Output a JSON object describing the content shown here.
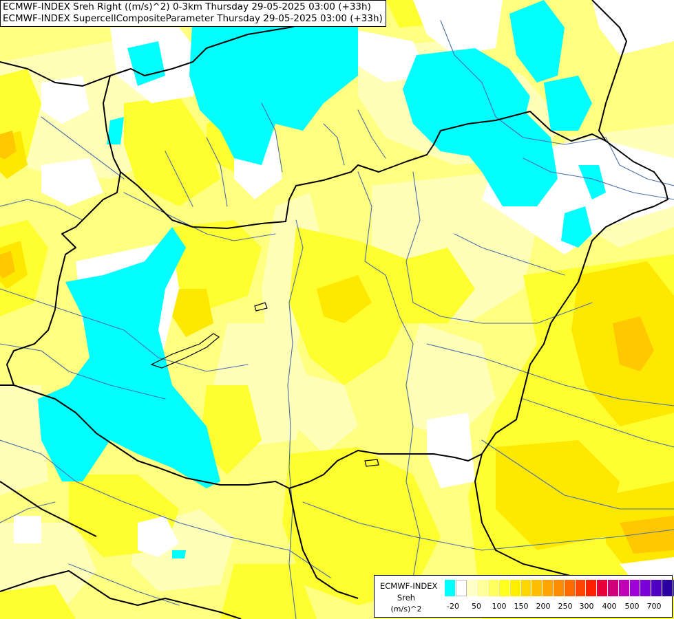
{
  "title": {
    "line1": "ECMWF-INDEX Sreh Right ((m/s)^2) 0-3km Thursday 29-05-2025 03:00 (+33h)",
    "line2": "ECMWF-INDEX SupercellCompositeParameter Thursday 29-05-2025 03:00 (+33h)"
  },
  "legend": {
    "model": "ECMWF-INDEX",
    "parameter": "Sreh",
    "unit": "(m/s)^2",
    "colors": [
      "#00ffff",
      "#ffffff",
      "#ffffc8",
      "#ffff9a",
      "#ffff60",
      "#ffff20",
      "#ffee00",
      "#ffd700",
      "#ffbf00",
      "#ffa500",
      "#ff8c00",
      "#ff6a00",
      "#ff4500",
      "#ff2000",
      "#e8003a",
      "#d0007a",
      "#c000b4",
      "#a000d8",
      "#7a00d8",
      "#5000c0",
      "#2a00a0",
      "#000080"
    ],
    "tick_labels": [
      "-20",
      "50",
      "100",
      "150",
      "200",
      "250",
      "300",
      "400",
      "500",
      "700"
    ]
  },
  "colors": {
    "cyan": "#00ffff",
    "white": "#ffffff",
    "pale_yellow": "#ffffb0",
    "light_yellow": "#ffff80",
    "yellow": "#ffff28",
    "gold": "#ffe400",
    "orange": "#ffc400",
    "border": "#000000",
    "river": "#4a6ea8"
  }
}
